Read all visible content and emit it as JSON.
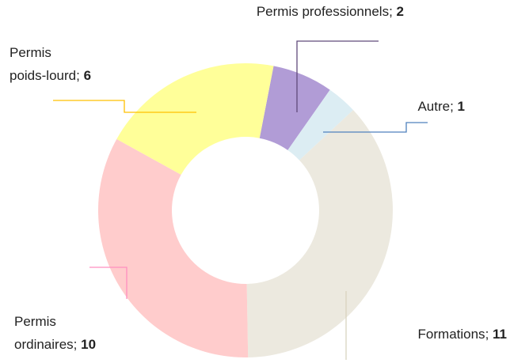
{
  "chart_data": {
    "type": "donut",
    "categories": [
      "Permis professionnels",
      "Autre",
      "Formations",
      "Permis ordinaires",
      "Permis poids-lourd"
    ],
    "values": [
      2,
      1,
      11,
      10,
      6
    ],
    "colors": [
      "#b19cd6",
      "#dcedf3",
      "#ece9df",
      "#ffcccc",
      "#ffff99"
    ],
    "label_separator": "; "
  }
}
